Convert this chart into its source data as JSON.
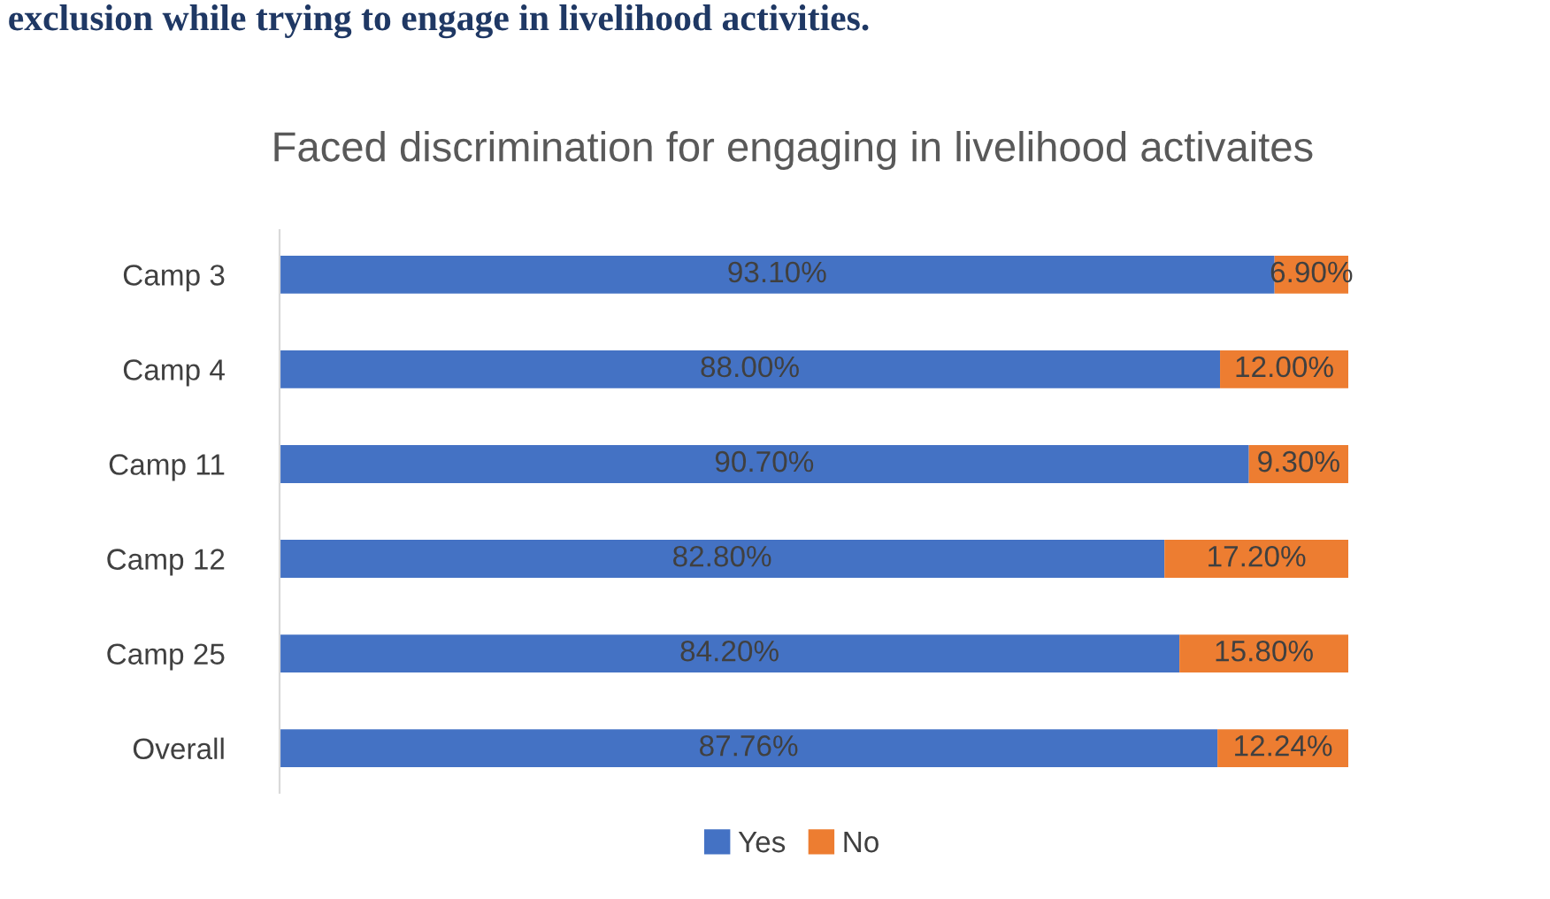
{
  "chart_data": {
    "type": "bar",
    "orientation": "horizontal",
    "stacked": true,
    "title": "Faced discrimination for engaging in livelihood activaites",
    "annotations": [
      "exclusion while trying to engage in livelihood activities."
    ],
    "categories": [
      "Camp 3",
      "Camp 4",
      "Camp 11",
      "Camp 12",
      "Camp 25",
      "Overall"
    ],
    "series": [
      {
        "name": "Yes",
        "color": "#4472c4",
        "values": [
          93.1,
          88.0,
          90.7,
          82.8,
          84.2,
          87.76
        ],
        "value_labels": [
          "93.10%",
          "88.00%",
          "90.70%",
          "82.80%",
          "84.20%",
          "87.76%"
        ]
      },
      {
        "name": "No",
        "color": "#ed7d31",
        "values": [
          6.9,
          12.0,
          9.3,
          17.2,
          15.8,
          12.24
        ],
        "value_labels": [
          "6.90%",
          "12.00%",
          "9.30%",
          "17.20%",
          "15.80%",
          "12.24%"
        ]
      }
    ],
    "legend": "bottom",
    "grid": false
  }
}
